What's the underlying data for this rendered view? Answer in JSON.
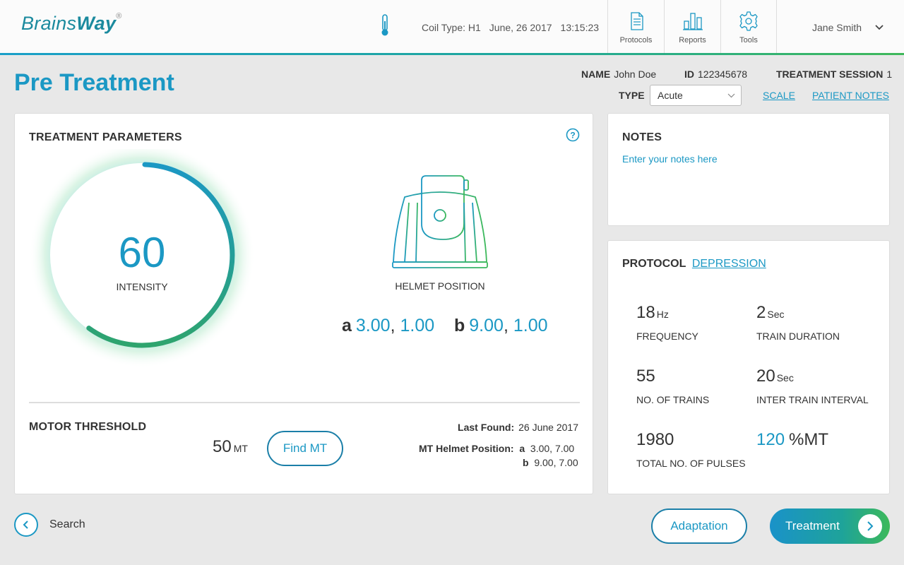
{
  "app": {
    "logo_light": "Brains",
    "logo_bold": "Way",
    "logo_mark": "®"
  },
  "header": {
    "coil_type": "Coil Type: H1",
    "date": "June, 26 2017",
    "time": "13:15:23",
    "nav": [
      {
        "label": "Protocols",
        "icon": "document-icon"
      },
      {
        "label": "Reports",
        "icon": "bar-chart-icon"
      },
      {
        "label": "Tools",
        "icon": "gear-icon"
      }
    ],
    "user_name": "Jane Smith"
  },
  "page": {
    "title": "Pre Treatment"
  },
  "patient": {
    "name_label": "NAME",
    "name": "John Doe",
    "id_label": "ID",
    "id": "122345678",
    "session_label": "TREATMENT SESSION",
    "session": "1",
    "type_label": "TYPE",
    "type_value": "Acute",
    "scale_link": "SCALE",
    "notes_link": "PATIENT NOTES"
  },
  "params": {
    "title": "TREATMENT PARAMETERS",
    "intensity_value": "60",
    "intensity_label": "INTENSITY",
    "intensity_fraction": 0.6,
    "helmet_label": "HELMET POSITION",
    "a_label": "a",
    "a_x": "3.00",
    "a_y": "1.00",
    "b_label": "b",
    "b_x": "9.00",
    "b_y": "1.00",
    "comma": ",",
    "mt_title": "MOTOR THRESHOLD",
    "mt_value": "50",
    "mt_unit": "MT",
    "find_mt": "Find MT",
    "last_found_label": "Last Found:",
    "last_found": "26 June 2017",
    "mt_helmet_label": "MT Helmet Position:",
    "mt_a_label": "a",
    "mt_a": "3.00, 7.00",
    "mt_b_label": "b",
    "mt_b": "9.00, 7.00"
  },
  "notes": {
    "title": "NOTES",
    "placeholder": "Enter your notes here"
  },
  "protocol": {
    "title": "PROTOCOL",
    "name": "DEPRESSION",
    "frequency_value": "18",
    "frequency_unit": "Hz",
    "frequency_label": "FREQUENCY",
    "train_duration_value": "2",
    "train_duration_unit": "Sec",
    "train_duration_label": "TRAIN DURATION",
    "trains_value": "55",
    "trains_label": "NO. OF TRAINS",
    "iti_value": "20",
    "iti_unit": "Sec",
    "iti_label": "INTER TRAIN INTERVAL",
    "pulses_value": "1980",
    "pulses_label": "TOTAL NO. OF PULSES",
    "mt_percent_value": "120",
    "mt_percent_unit": "%MT"
  },
  "footer": {
    "search": "Search",
    "adaptation": "Adaptation",
    "treatment": "Treatment"
  },
  "colors": {
    "accent": "#1b98c4",
    "green": "#3db95a"
  }
}
